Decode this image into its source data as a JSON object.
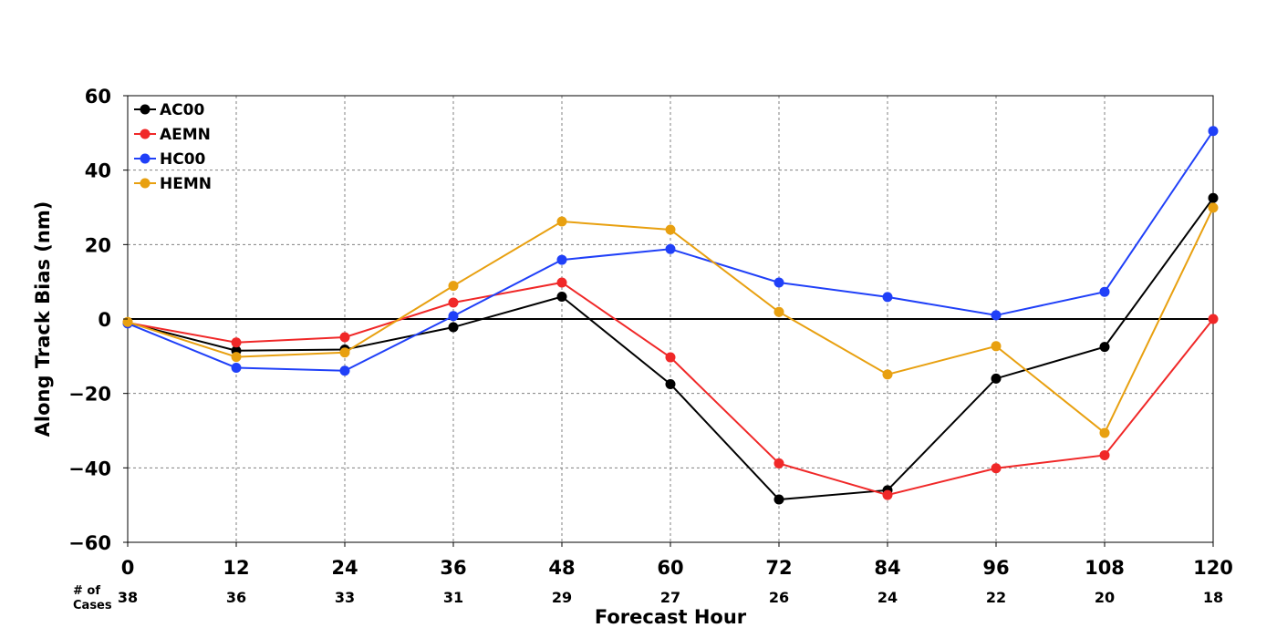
{
  "chart_data": {
    "type": "line",
    "title": "",
    "xlabel": "Forecast Hour",
    "ylabel": "Along Track Bias (nm)",
    "x": [
      0,
      12,
      24,
      36,
      48,
      60,
      72,
      84,
      96,
      108,
      120
    ],
    "x_tick_labels": [
      "0",
      "12",
      "24",
      "36",
      "48",
      "60",
      "72",
      "84",
      "96",
      "108",
      "120"
    ],
    "xlim": [
      0,
      120
    ],
    "ylim": [
      -60,
      60
    ],
    "y_ticks": [
      60,
      40,
      20,
      0,
      -20,
      -40,
      -60
    ],
    "y_tick_labels": [
      "60",
      "40",
      "20",
      "0",
      "−20",
      "−40",
      "−60"
    ],
    "grid": true,
    "legend_position": "top-left",
    "zero_line": true,
    "cases_label": [
      "# of",
      "Cases"
    ],
    "cases": [
      "38",
      "36",
      "33",
      "31",
      "29",
      "27",
      "26",
      "24",
      "22",
      "20",
      "18"
    ],
    "series": [
      {
        "name": "AC00",
        "color": "#000000",
        "values": [
          -1,
          -8.5,
          -8.2,
          -2.2,
          6,
          -17.5,
          -48.5,
          -46,
          -16,
          -7.5,
          32.5
        ]
      },
      {
        "name": "AEMN",
        "color": "#f02828",
        "values": [
          -1,
          -6.3,
          -4.9,
          4.4,
          9.8,
          -10.3,
          -38.8,
          -47.3,
          -40.1,
          -36.6,
          0
        ]
      },
      {
        "name": "HC00",
        "color": "#2040f8",
        "values": [
          -1.2,
          -13.1,
          -13.9,
          0.8,
          15.9,
          18.8,
          9.8,
          5.9,
          1,
          7.3,
          50.5
        ]
      },
      {
        "name": "HEMN",
        "color": "#e8a010",
        "values": [
          -0.8,
          -10.2,
          -9,
          8.9,
          26.2,
          24,
          1.9,
          -14.9,
          -7.3,
          -30.6,
          29.9
        ]
      }
    ]
  }
}
